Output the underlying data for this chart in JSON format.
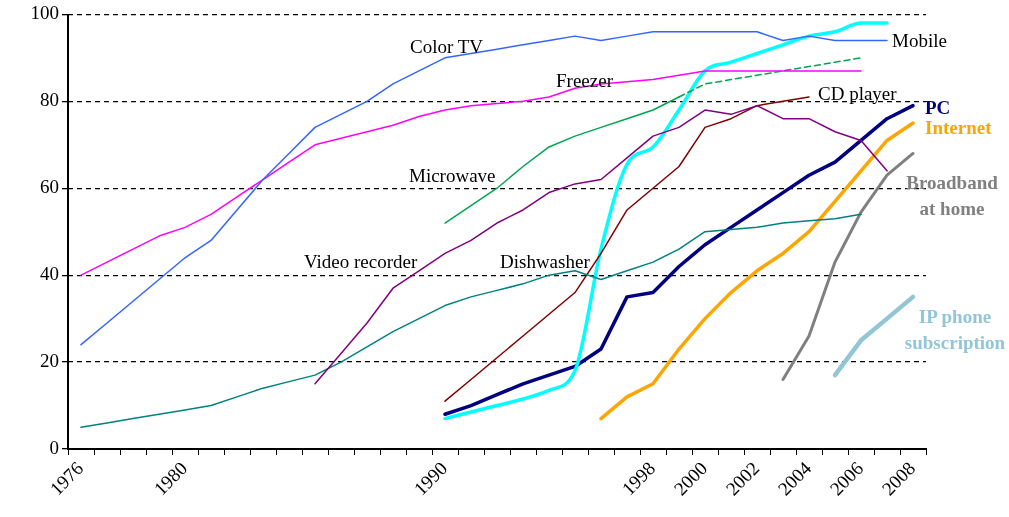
{
  "chart_data": {
    "type": "line",
    "categories": [
      "1976",
      null,
      null,
      null,
      "1980",
      null,
      null,
      null,
      null,
      null,
      null,
      null,
      null,
      null,
      "1990",
      null,
      null,
      null,
      null,
      null,
      null,
      null,
      "1998",
      null,
      "2000",
      null,
      "2002",
      null,
      "2004",
      null,
      "2006",
      null,
      "2008"
    ],
    "ylim": [
      0,
      100
    ],
    "yticks": [
      0,
      20,
      40,
      60,
      80,
      100
    ],
    "grid": "y",
    "legend": false,
    "marker": "none",
    "series": [
      {
        "name": "Color TV",
        "color": "#3366ff",
        "values": [
          24,
          29,
          34,
          39,
          44,
          48,
          55,
          62,
          68,
          74,
          77,
          80,
          84,
          87,
          90,
          91,
          92,
          93,
          94,
          95,
          94,
          95,
          96,
          96,
          96,
          96,
          96,
          94,
          95,
          94,
          94,
          94,
          null
        ]
      },
      {
        "name": "Freezer",
        "color": "#ff00ff",
        "values": [
          40,
          43,
          46,
          49,
          51,
          54,
          58,
          62,
          66,
          70,
          71.5,
          73,
          74.5,
          76.5,
          78,
          79,
          79.5,
          80,
          81,
          83,
          84,
          84.5,
          85,
          86,
          87,
          87,
          87,
          87,
          87,
          87,
          87,
          null,
          null
        ]
      },
      {
        "name": "Microwave",
        "color": "#00a550",
        "values": [
          null,
          null,
          null,
          null,
          null,
          null,
          null,
          null,
          null,
          null,
          null,
          null,
          null,
          null,
          52,
          56,
          60,
          65,
          69.5,
          72,
          74,
          76,
          78,
          81,
          null,
          null,
          null,
          null,
          null,
          null,
          null,
          null,
          null
        ]
      },
      {
        "color": "#00a550",
        "line_style": "dashed",
        "values": [
          null,
          null,
          null,
          null,
          null,
          null,
          null,
          null,
          null,
          null,
          null,
          null,
          null,
          null,
          null,
          null,
          null,
          null,
          null,
          null,
          null,
          null,
          null,
          81,
          84,
          85,
          86,
          87,
          88,
          89,
          90,
          null,
          null
        ]
      },
      {
        "name": "Video recorder",
        "color": "#800080",
        "values": [
          null,
          null,
          null,
          null,
          null,
          null,
          null,
          null,
          null,
          15,
          22,
          29,
          37,
          41,
          45,
          48,
          52,
          55,
          59,
          61,
          62,
          67,
          72,
          74,
          78,
          77,
          79,
          76,
          76,
          73,
          71,
          64,
          null
        ]
      },
      {
        "name": "Dishwasher",
        "color": "#008080",
        "values": [
          5,
          6,
          7,
          8,
          9,
          10,
          12,
          14,
          15.5,
          17,
          20,
          23.5,
          27,
          30,
          33,
          35,
          36.5,
          38,
          40,
          41,
          39,
          41,
          43,
          46,
          50,
          50.5,
          51,
          52,
          52.5,
          53,
          54,
          null,
          null
        ]
      },
      {
        "name": "CD player",
        "color": "#800000",
        "values": [
          null,
          null,
          null,
          null,
          null,
          null,
          null,
          null,
          null,
          null,
          null,
          null,
          null,
          null,
          11,
          16,
          21,
          26,
          31,
          36,
          45,
          55,
          60,
          65,
          74,
          76,
          79,
          80,
          81,
          null,
          null,
          null,
          null
        ]
      },
      {
        "name": "Mobile",
        "color": "#00ffff",
        "values": [
          null,
          null,
          null,
          null,
          null,
          null,
          null,
          null,
          null,
          null,
          null,
          null,
          null,
          null,
          7,
          8.5,
          10,
          11.5,
          13.5,
          18,
          46,
          65.5,
          69.5,
          78,
          87,
          89,
          91,
          93,
          95,
          96,
          98,
          98,
          null
        ]
      },
      {
        "name": "PC",
        "color": "#000080",
        "values": [
          null,
          null,
          null,
          null,
          null,
          null,
          null,
          null,
          null,
          null,
          null,
          null,
          null,
          null,
          8,
          10,
          12.5,
          15,
          17,
          19,
          23,
          35,
          36,
          42,
          47,
          51,
          55,
          59,
          63,
          66,
          71,
          76,
          79
        ]
      },
      {
        "name": "Internet",
        "color": "#ffa500",
        "values": [
          null,
          null,
          null,
          null,
          null,
          null,
          null,
          null,
          null,
          null,
          null,
          null,
          null,
          null,
          null,
          null,
          null,
          null,
          null,
          null,
          7,
          12,
          15,
          23,
          30,
          36,
          41,
          45,
          50,
          57,
          64,
          71,
          75
        ]
      },
      {
        "name": "Broadband at home",
        "color": "#808080",
        "values": [
          null,
          null,
          null,
          null,
          null,
          null,
          null,
          null,
          null,
          null,
          null,
          null,
          null,
          null,
          null,
          null,
          null,
          null,
          null,
          null,
          null,
          null,
          null,
          null,
          null,
          null,
          null,
          16,
          26,
          43,
          54.5,
          63,
          68
        ]
      },
      {
        "name": "IP phone subscription",
        "color": "#92c5d6",
        "values": [
          null,
          null,
          null,
          null,
          null,
          null,
          null,
          null,
          null,
          null,
          null,
          null,
          null,
          null,
          null,
          null,
          null,
          null,
          null,
          null,
          null,
          null,
          null,
          null,
          null,
          null,
          null,
          null,
          null,
          17,
          25,
          30,
          35
        ]
      }
    ]
  }
}
